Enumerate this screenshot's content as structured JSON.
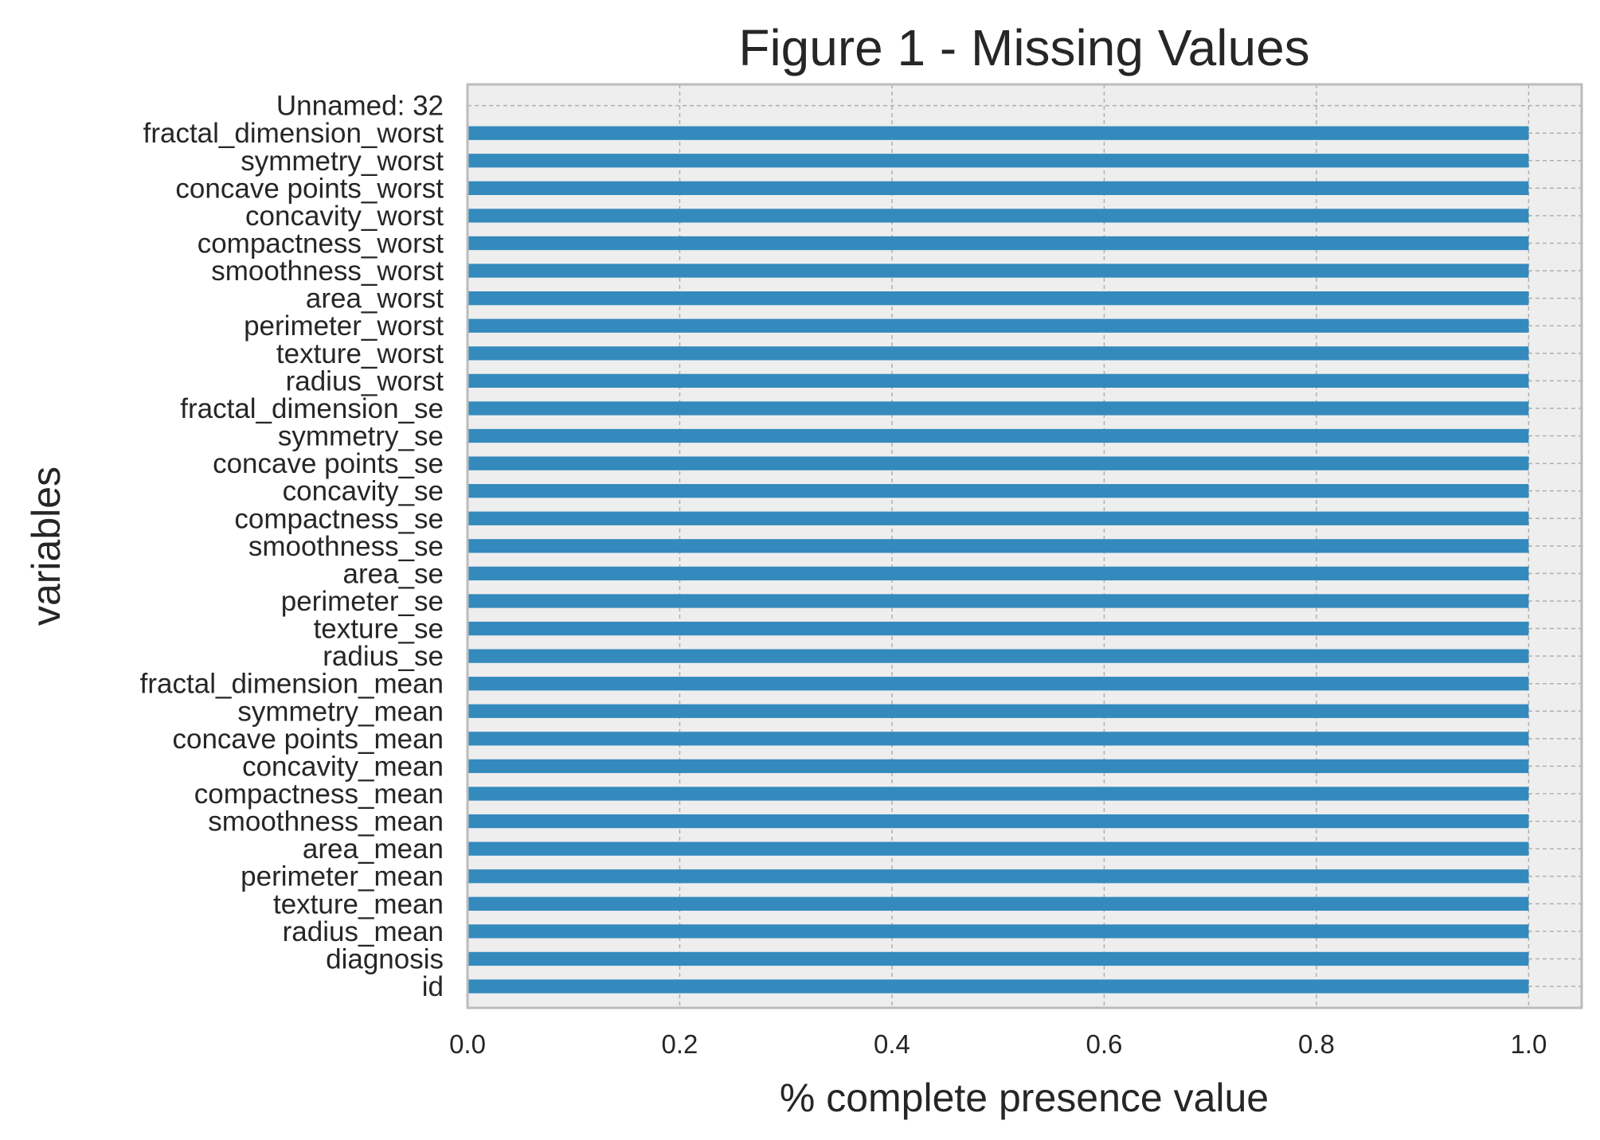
{
  "chart_data": {
    "type": "bar",
    "orientation": "horizontal",
    "title": "Figure 1 - Missing Values",
    "xlabel": "% complete presence value",
    "ylabel": "variables",
    "xlim": [
      0.0,
      1.05
    ],
    "xticks": [
      "0.0",
      "0.2",
      "0.4",
      "0.6",
      "0.8",
      "1.0"
    ],
    "grid": true,
    "bar_color": "#348abd",
    "plot_background": "#eeeeee",
    "categories": [
      "id",
      "diagnosis",
      "radius_mean",
      "texture_mean",
      "perimeter_mean",
      "area_mean",
      "smoothness_mean",
      "compactness_mean",
      "concavity_mean",
      "concave points_mean",
      "symmetry_mean",
      "fractal_dimension_mean",
      "radius_se",
      "texture_se",
      "perimeter_se",
      "area_se",
      "smoothness_se",
      "compactness_se",
      "concavity_se",
      "concave points_se",
      "symmetry_se",
      "fractal_dimension_se",
      "radius_worst",
      "texture_worst",
      "perimeter_worst",
      "area_worst",
      "smoothness_worst",
      "compactness_worst",
      "concavity_worst",
      "concave points_worst",
      "symmetry_worst",
      "fractal_dimension_worst",
      "Unnamed: 32"
    ],
    "values": [
      1.0,
      1.0,
      1.0,
      1.0,
      1.0,
      1.0,
      1.0,
      1.0,
      1.0,
      1.0,
      1.0,
      1.0,
      1.0,
      1.0,
      1.0,
      1.0,
      1.0,
      1.0,
      1.0,
      1.0,
      1.0,
      1.0,
      1.0,
      1.0,
      1.0,
      1.0,
      1.0,
      1.0,
      1.0,
      1.0,
      1.0,
      1.0,
      0.0
    ]
  }
}
